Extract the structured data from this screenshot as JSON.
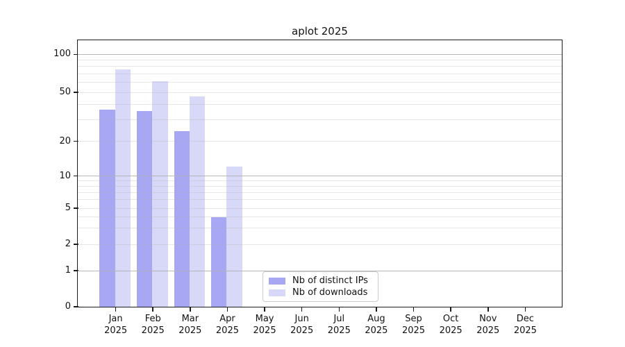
{
  "title": "aplot 2025",
  "y_axis": {
    "tick_labels": [
      "0",
      "1",
      "2",
      "5",
      "10",
      "20",
      "50",
      "100"
    ]
  },
  "x_axis": {
    "tick_labels": [
      "Jan 2025",
      "Feb 2025",
      "Mar 2025",
      "Apr 2025",
      "May 2025",
      "Jun 2025",
      "Jul 2025",
      "Aug 2025",
      "Sep 2025",
      "Oct 2025",
      "Nov 2025",
      "Dec 2025"
    ]
  },
  "legend": {
    "items": [
      {
        "label": "Nb of distinct IPs",
        "color": "#a7a7f3"
      },
      {
        "label": "Nb of downloads",
        "color": "#d8d8f8"
      }
    ]
  },
  "colors": {
    "bar_distinct_ips": "#a7a7f3",
    "bar_downloads": "#d8d8f8",
    "grid_major": "#b0b0b0",
    "grid_minor": "#e7e7e7",
    "axis": "#1a1a1a",
    "legend_border": "#cbcbcb",
    "background": "#ffffff"
  },
  "chart_data": {
    "type": "bar",
    "title": "aplot 2025",
    "categories": [
      "Jan 2025",
      "Feb 2025",
      "Mar 2025",
      "Apr 2025",
      "May 2025",
      "Jun 2025",
      "Jul 2025",
      "Aug 2025",
      "Sep 2025",
      "Oct 2025",
      "Nov 2025",
      "Dec 2025"
    ],
    "series": [
      {
        "name": "Nb of distinct IPs",
        "color": "#a7a7f3",
        "values": [
          36,
          35,
          24,
          4,
          0,
          0,
          0,
          0,
          0,
          0,
          0,
          0
        ]
      },
      {
        "name": "Nb of downloads",
        "color": "#d8d8f8",
        "values": [
          76,
          61,
          46,
          12,
          0,
          0,
          0,
          0,
          0,
          0,
          0,
          0
        ]
      }
    ],
    "xlabel": "",
    "ylabel": "",
    "y_scale": "log-like (0, 1, 2, 5, 10, 20, 50, 100)",
    "y_ticks": [
      0,
      1,
      2,
      5,
      10,
      20,
      50,
      100
    ],
    "y_major_gridlines": [
      1,
      10,
      100
    ],
    "y_minor_gridlines": [
      2,
      3,
      4,
      5,
      6,
      7,
      8,
      9,
      20,
      30,
      40,
      50,
      60,
      70,
      80,
      90
    ],
    "ylim": [
      0,
      130
    ],
    "grid": "horizontal major+minor",
    "legend_position": "lower center"
  }
}
